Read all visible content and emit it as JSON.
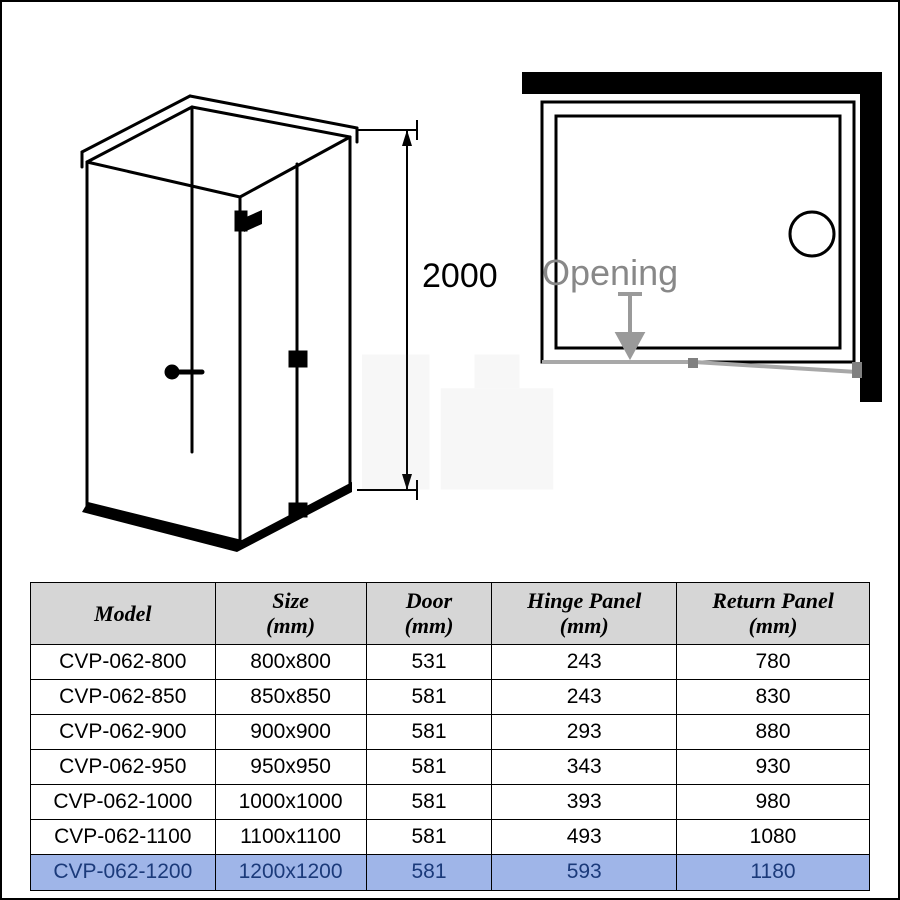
{
  "diagram": {
    "height_label": "2000",
    "opening_label": "Opening",
    "colors": {
      "line": "#000000",
      "light_line": "#888888",
      "highlight_row": "#9fb5e8",
      "highlight_text": "#1b3a7a",
      "header_bg": "#d6d6d6",
      "background": "#ffffff"
    }
  },
  "table": {
    "columns": [
      "Model",
      "Size\n(mm)",
      "Door\n(mm)",
      "Hinge Panel\n(mm)",
      "Return Panel\n(mm)"
    ],
    "rows": [
      [
        "CVP-062-800",
        "800x800",
        "531",
        "243",
        "780"
      ],
      [
        "CVP-062-850",
        "850x850",
        "581",
        "243",
        "830"
      ],
      [
        "CVP-062-900",
        "900x900",
        "581",
        "293",
        "880"
      ],
      [
        "CVP-062-950",
        "950x950",
        "581",
        "343",
        "930"
      ],
      [
        "CVP-062-1000",
        "1000x1000",
        "581",
        "393",
        "980"
      ],
      [
        "CVP-062-1100",
        "1100x1100",
        "581",
        "493",
        "1080"
      ],
      [
        "CVP-062-1200",
        "1200x1200",
        "581",
        "593",
        "1180"
      ]
    ],
    "highlight_row_index": 6,
    "col_widths_pct": [
      22,
      18,
      15,
      22,
      23
    ]
  }
}
